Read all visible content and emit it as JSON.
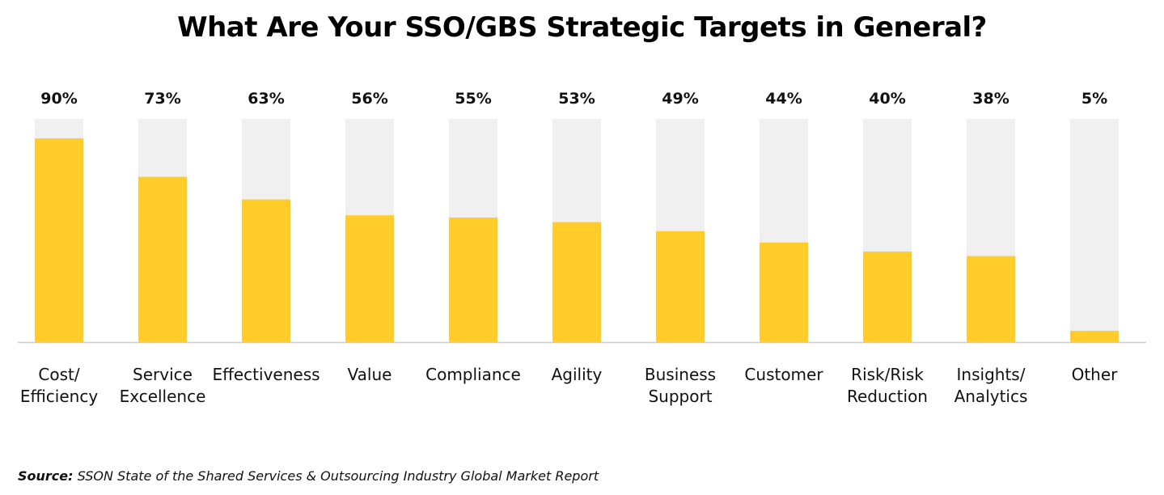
{
  "chart_data": {
    "type": "bar",
    "title": "What Are Your SSO/GBS Strategic Targets in General?",
    "categories": [
      [
        "Cost/",
        "Efficiency"
      ],
      [
        "Service",
        "Excellence"
      ],
      [
        "Effectiveness"
      ],
      [
        "Value"
      ],
      [
        "Compliance"
      ],
      [
        "Agility"
      ],
      [
        "Business",
        "Support"
      ],
      [
        "Customer"
      ],
      [
        "Risk/Risk",
        "Reduction"
      ],
      [
        "Insights/",
        "Analytics"
      ],
      [
        "Other"
      ]
    ],
    "values": [
      90,
      73,
      63,
      56,
      55,
      53,
      49,
      44,
      40,
      38,
      5
    ],
    "value_labels": [
      "90%",
      "73%",
      "63%",
      "56%",
      "55%",
      "53%",
      "49%",
      "44%",
      "40%",
      "38%",
      "5%"
    ],
    "ylim": [
      0,
      100
    ],
    "grid": false,
    "colors": {
      "bar": "#FFCC29",
      "track": "#F0F0F0",
      "baseline": "#CCCCCC"
    }
  },
  "source": {
    "lead": "Source:",
    "text": " SSON State of the Shared Services & Outsourcing Industry Global Market Report"
  }
}
